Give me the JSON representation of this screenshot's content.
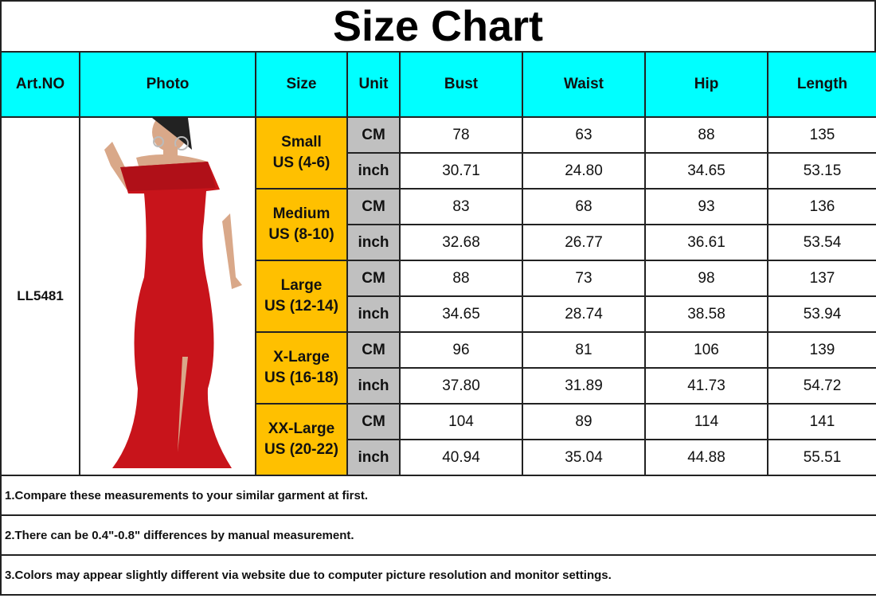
{
  "title": "Size Chart",
  "colors": {
    "header_bg": "#00ffff",
    "size_bg": "#ffc000",
    "unit_bg": "#c0c0c0",
    "dress": "#c8141b"
  },
  "headers": [
    "Art.NO",
    "Photo",
    "Size",
    "Unit",
    "Bust",
    "Waist",
    "Hip",
    "Length"
  ],
  "art_no": "LL5481",
  "photo_icon": "red-dress-photo",
  "sizes": [
    {
      "name": "Small",
      "us": "US (4-6)",
      "rows": [
        {
          "unit": "CM",
          "values": [
            "78",
            "63",
            "88",
            "135"
          ]
        },
        {
          "unit": "inch",
          "values": [
            "30.71",
            "24.80",
            "34.65",
            "53.15"
          ]
        }
      ]
    },
    {
      "name": "Medium",
      "us": "US (8-10)",
      "rows": [
        {
          "unit": "CM",
          "values": [
            "83",
            "68",
            "93",
            "136"
          ]
        },
        {
          "unit": "inch",
          "values": [
            "32.68",
            "26.77",
            "36.61",
            "53.54"
          ]
        }
      ]
    },
    {
      "name": "Large",
      "us": "US (12-14)",
      "rows": [
        {
          "unit": "CM",
          "values": [
            "88",
            "73",
            "98",
            "137"
          ]
        },
        {
          "unit": "inch",
          "values": [
            "34.65",
            "28.74",
            "38.58",
            "53.94"
          ]
        }
      ]
    },
    {
      "name": "X-Large",
      "us": "US (16-18)",
      "rows": [
        {
          "unit": "CM",
          "values": [
            "96",
            "81",
            "106",
            "139"
          ]
        },
        {
          "unit": "inch",
          "values": [
            "37.80",
            "31.89",
            "41.73",
            "54.72"
          ]
        }
      ]
    },
    {
      "name": "XX-Large",
      "us": "US (20-22)",
      "rows": [
        {
          "unit": "CM",
          "values": [
            "104",
            "89",
            "114",
            "141"
          ]
        },
        {
          "unit": "inch",
          "values": [
            "40.94",
            "35.04",
            "44.88",
            "55.51"
          ]
        }
      ]
    }
  ],
  "notes": [
    "1.Compare these measurements to your similar garment at first.",
    "2.There can be 0.4\"-0.8\" differences by manual measurement.",
    "3.Colors may appear slightly different via website due to computer picture resolution and monitor settings."
  ]
}
